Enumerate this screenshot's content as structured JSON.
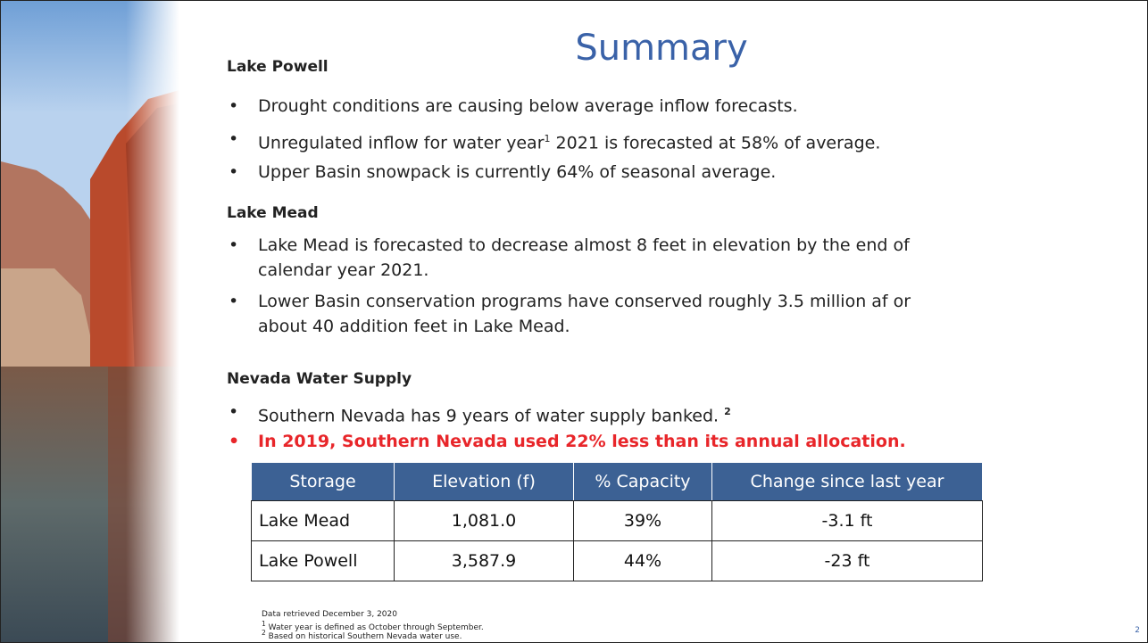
{
  "title": "Summary",
  "sections": [
    {
      "heading": "Lake Powell",
      "bullets": [
        "Drought conditions are causing below average inflow forecasts.",
        [
          "Unregulated inflow for water year",
          "1",
          " 2021 is forecasted at 58% of average."
        ],
        "Upper Basin snowpack is currently 64% of seasonal average."
      ]
    },
    {
      "heading": "Lake Mead",
      "bullets": [
        "Lake Mead is forecasted to decrease almost 8 feet in elevation by the end of calendar year 2021.",
        "Lower Basin conservation programs have conserved roughly 3.5 million af or about 40 addition feet in Lake Mead."
      ]
    },
    {
      "heading": "Nevada Water Supply",
      "bullets": [
        [
          "Southern Nevada has 9 years of water supply banked. ",
          "2"
        ],
        "In 2019, Southern Nevada used 22% less than its annual allocation."
      ]
    }
  ],
  "table": {
    "header": [
      "Storage",
      "Elevation (f)",
      "% Capacity",
      "Change since last year"
    ],
    "rows": [
      [
        "Lake Mead",
        "1,081.0",
        "39%",
        "-3.1 ft"
      ],
      [
        "Lake Powell",
        "3,587.9",
        "44%",
        "-23 ft"
      ]
    ]
  },
  "footnotes": [
    "Data retrieved December 3, 2020",
    [
      "1",
      " Water year is defined as October through September."
    ],
    [
      "2",
      " Based on historical Southern Nevada water use."
    ]
  ],
  "page_number": "2"
}
